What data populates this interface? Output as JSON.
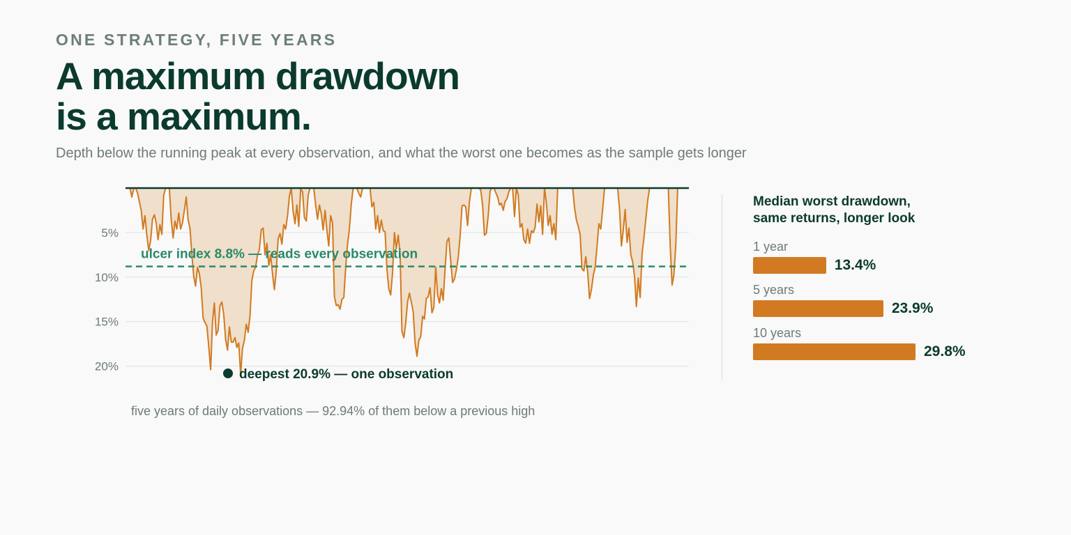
{
  "header": {
    "kicker": "ONE STRATEGY, FIVE YEARS",
    "headline_line1": "A maximum drawdown",
    "headline_line2": "is a maximum.",
    "subtitle": "Depth below the running peak at every observation, and what the worst one becomes as the sample gets longer"
  },
  "colors": {
    "accent": "#d27a21",
    "fill": "#efdfcb",
    "ulcer": "#2a8a6a",
    "dark": "#0b3a2e"
  },
  "chart_data": [
    {
      "type": "area",
      "title": "",
      "xlabel": "",
      "ylabel": "",
      "y_inverted": true,
      "ylim": [
        0,
        20
      ],
      "y_ticks": [
        5,
        10,
        15,
        20
      ],
      "y_tick_labels": [
        "5%",
        "10%",
        "15%",
        "20%"
      ],
      "grid": true,
      "x_count": 1260,
      "series": [
        {
          "values": [
            0,
            0,
            0,
            1,
            0,
            0,
            0.5,
            1.5,
            2.5,
            4.6,
            3.1,
            5.3,
            7.0,
            5.9,
            3.5,
            3.0,
            3.9,
            5.8,
            4.1,
            5.2,
            0.8,
            0,
            0,
            0,
            3.6,
            5.6,
            3.7,
            4.6,
            2.8,
            4.6,
            3.9,
            2.5,
            1.0,
            3.6,
            4.5,
            7.5,
            9.9,
            11.0,
            8.9,
            9.6,
            11.2,
            14.6,
            15.1,
            15.5,
            17.8,
            20.4,
            15.0,
            12.9,
            16.5,
            16.0,
            13.2,
            12.8,
            14.2,
            17.0,
            18.2,
            15.6,
            17.3,
            17.3,
            16.8,
            17.9,
            17.4,
            20.9,
            18.0,
            17.1,
            15.3,
            16.2,
            14.3,
            10.4,
            9.3,
            8.9,
            7.5,
            6.9,
            4.7,
            4.5,
            7.5,
            6.2,
            8.7,
            7.5,
            9.6,
            11.4,
            9.3,
            5.7,
            5.1,
            6.3,
            4.1,
            4.6,
            3.1,
            0.9,
            0,
            2.6,
            4.0,
            1.9,
            4.3,
            0.1,
            0.4,
            3.3,
            3.7,
            0.8,
            0,
            0,
            0,
            1.9,
            3.5,
            1.9,
            2.9,
            4.7,
            2.5,
            4.8,
            6.5,
            3.1,
            3.9,
            12.2,
            13.2,
            13.1,
            13.6,
            12.5,
            12.3,
            8.9,
            6.3,
            4.6,
            1.8,
            0,
            0,
            0,
            0.6,
            1.0,
            0,
            0,
            0,
            0,
            0,
            2.1,
            1.6,
            4.6,
            3.1,
            5.0,
            3.6,
            4.8,
            4.9,
            9.1,
            11.3,
            12.0,
            9.5,
            5.0,
            6.8,
            5.3,
            7.4,
            16.1,
            16.8,
            15.2,
            12.8,
            11.8,
            12.8,
            13.9,
            17.4,
            18.9,
            17.1,
            16.7,
            14.4,
            14.7,
            12.4,
            12.2,
            11.2,
            14.0,
            13.4,
            8.9,
            12.0,
            12.9,
            11.3,
            12.6,
            9.1,
            6.0,
            5.6,
            8.2,
            10.6,
            10.2,
            9.2,
            7.8,
            5.4,
            2.0,
            1.9,
            2.1,
            4.2,
            1.5,
            0,
            0,
            0,
            0,
            0,
            0.2,
            1.9,
            5.3,
            5.1,
            3.1,
            0.3,
            0,
            0,
            0.5,
            1.0,
            1.9,
            1.7,
            2.5,
            1.5,
            1.2,
            0.4,
            0,
            0,
            3.2,
            0,
            0.8,
            4.4,
            4.0,
            5.8,
            6.2,
            4.6,
            6.2,
            4.8,
            5.0,
            4.4,
            1.8,
            3.8,
            2.0,
            5.2,
            0,
            1.7,
            4.2,
            3.1,
            5.2,
            4.0,
            5.8,
            0,
            0,
            0,
            0,
            0,
            0,
            0,
            0,
            0,
            2.2,
            3.6,
            4.3,
            5.2,
            9.1,
            9.3,
            7.7,
            9.4,
            12.4,
            11.4,
            9.8,
            8.9,
            6.6,
            4.0,
            4.6,
            2.4,
            0,
            0,
            0,
            0,
            0,
            0,
            0,
            0,
            2.3,
            6.5,
            4.7,
            2.4,
            6.1,
            4.5,
            7.5,
            8.3,
            10.0,
            13.3,
            10.1,
            12.3,
            7.4,
            5.6,
            3.5,
            1.4,
            0,
            0,
            0,
            0,
            0,
            0,
            0,
            0,
            0,
            0,
            0,
            6.5,
            10.9,
            9.7,
            6.4,
            0,
            0,
            0,
            0
          ]
        }
      ],
      "annotations": {
        "peak_line": "running peak",
        "ulcer_index": 8.8,
        "ulcer_label": "ulcer index 8.8% — reads every observation",
        "deepest_value": 20.9,
        "deepest_label": "deepest 20.9% — one observation"
      },
      "footnote": "five years of daily observations — 92.94% of them below a previous high"
    },
    {
      "type": "bar",
      "title": "Median worst drawdown, same returns, longer look",
      "title_line1": "Median worst drawdown,",
      "title_line2": "same returns, longer look",
      "categories": [
        "1 year",
        "5 years",
        "10 years"
      ],
      "values": [
        13.4,
        23.9,
        29.8
      ],
      "value_labels": [
        "13.4%",
        "23.9%",
        "29.8%"
      ],
      "xlim": [
        0,
        30
      ]
    }
  ]
}
